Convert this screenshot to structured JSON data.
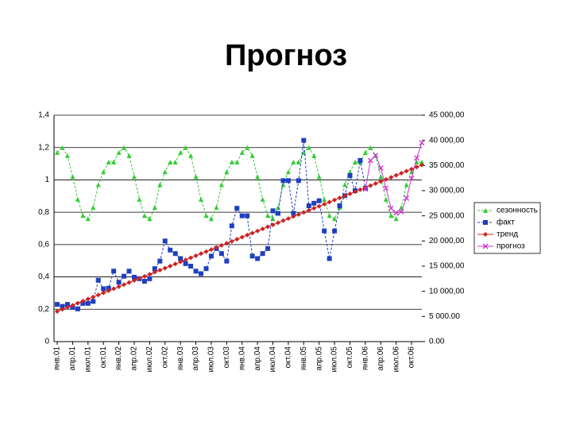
{
  "chart_data": {
    "type": "line",
    "title": "Прогноз",
    "categories": [
      "янв.01",
      null,
      null,
      "апр.01",
      null,
      null,
      "июл.01",
      null,
      null,
      "окт.01",
      null,
      null,
      "янв.02",
      null,
      null,
      "апр.02",
      null,
      null,
      "июл.02",
      null,
      null,
      "окт.02",
      null,
      null,
      "янв.03",
      null,
      null,
      "апр.03",
      null,
      null,
      "июл.03",
      null,
      null,
      "окт.03",
      null,
      null,
      "янв.04",
      null,
      null,
      "апр.04",
      null,
      null,
      "июл.04",
      null,
      null,
      "окт.04",
      null,
      null,
      "янв.05",
      null,
      null,
      "апр.05",
      null,
      null,
      "июл.05",
      null,
      null,
      "окт.05",
      null,
      null,
      "янв.06",
      null,
      null,
      "апр.06",
      null,
      null,
      "июл.06",
      null,
      null,
      "окт.06",
      null,
      null
    ],
    "ylim": [
      0,
      1.4
    ],
    "yticks": [
      0,
      {
        "value": 0.2,
        "label": "0,2"
      },
      {
        "value": 0.4,
        "label": "0,4"
      },
      {
        "value": 0.6,
        "label": "0,6"
      },
      {
        "value": 0.8,
        "label": "0,8"
      },
      1,
      {
        "value": 1.2,
        "label": "1,2"
      },
      {
        "value": 1.4,
        "label": "1,4"
      }
    ],
    "y2lim": [
      0,
      45000
    ],
    "y2ticks": [
      {
        "value": 0,
        "label": "0.00"
      },
      {
        "value": 5000,
        "label": "5 000.00"
      },
      {
        "value": 10000,
        "label": "10 000,00"
      },
      {
        "value": 15000,
        "label": "15 000,00"
      },
      {
        "value": 20000,
        "label": "20 000,00"
      },
      {
        "value": 25000,
        "label": "25 000,00"
      },
      {
        "value": 30000,
        "label": "30 000,00"
      },
      {
        "value": 35000,
        "label": "35 000,00"
      },
      {
        "value": 40000,
        "label": "40 000,00"
      },
      {
        "value": 45000,
        "label": "45 000,00"
      }
    ],
    "grid": true,
    "legend": "right",
    "series": [
      {
        "name": "сезонность",
        "color": "#33cc33",
        "marker": "triangle",
        "dash": true,
        "values": [
          1.17,
          1.2,
          1.15,
          1.02,
          0.88,
          0.78,
          0.76,
          0.83,
          0.97,
          1.05,
          1.11,
          1.11,
          1.17,
          1.2,
          1.15,
          1.02,
          0.88,
          0.78,
          0.76,
          0.83,
          0.97,
          1.05,
          1.11,
          1.11,
          1.17,
          1.2,
          1.15,
          1.02,
          0.88,
          0.78,
          0.76,
          0.83,
          0.97,
          1.05,
          1.11,
          1.11,
          1.17,
          1.2,
          1.15,
          1.02,
          0.88,
          0.78,
          0.76,
          0.83,
          0.97,
          1.05,
          1.11,
          1.11,
          1.17,
          1.2,
          1.15,
          1.02,
          0.88,
          0.78,
          0.76,
          0.83,
          0.97,
          1.05,
          1.11,
          1.11,
          1.17,
          1.2,
          1.15,
          1.02,
          0.88,
          0.78,
          0.76,
          0.83,
          0.97,
          1.05,
          1.11,
          1.11
        ]
      },
      {
        "name": "факт",
        "color": "#1f3fbf",
        "marker": "square",
        "dash": true,
        "axis": "y2",
        "values": [
          7400,
          7000,
          7400,
          6800,
          6500,
          7600,
          7600,
          8000,
          12200,
          10500,
          10600,
          14000,
          11800,
          13000,
          14000,
          12800,
          12500,
          12000,
          12500,
          14500,
          16000,
          20000,
          18200,
          17500,
          16500,
          15500,
          15000,
          14000,
          13500,
          14500,
          17000,
          18500,
          17500,
          16000,
          23000,
          26500,
          25000,
          25000,
          17000,
          16500,
          17500,
          18500,
          26000,
          25500,
          32000,
          32000,
          25500,
          32000,
          40000,
          27000,
          27500,
          28000,
          22000,
          16500,
          22000,
          27000,
          29000,
          33000,
          30000,
          36000,
          30500,
          null,
          null,
          null,
          null,
          null,
          null,
          null,
          null,
          null,
          null,
          null
        ]
      },
      {
        "name": "тренд",
        "color": "#cc2222",
        "marker": "diamond",
        "dash": false,
        "axis": "y2",
        "values": [
          6000,
          6410,
          6820,
          7230,
          7640,
          8050,
          8460,
          8870,
          9280,
          9690,
          10100,
          10510,
          10920,
          11330,
          11740,
          12150,
          12560,
          12970,
          13380,
          13790,
          14200,
          14610,
          15020,
          15430,
          15840,
          16250,
          16660,
          17070,
          17480,
          17890,
          18300,
          18710,
          19120,
          19530,
          19940,
          20350,
          20760,
          21170,
          21580,
          21990,
          22400,
          22810,
          23220,
          23630,
          24040,
          24450,
          24860,
          25270,
          25680,
          26090,
          26500,
          26910,
          27320,
          27730,
          28140,
          28550,
          28960,
          29370,
          29780,
          30190,
          30600,
          31010,
          31420,
          31830,
          32240,
          32650,
          33060,
          33470,
          33880,
          34290,
          34700,
          35110
        ]
      },
      {
        "name": "прогноз",
        "color": "#cc33cc",
        "marker": "x",
        "dash": false,
        "axis": "y2",
        "values": [
          null,
          null,
          null,
          null,
          null,
          null,
          null,
          null,
          null,
          null,
          null,
          null,
          null,
          null,
          null,
          null,
          null,
          null,
          null,
          null,
          null,
          null,
          null,
          null,
          null,
          null,
          null,
          null,
          null,
          null,
          null,
          null,
          null,
          null,
          null,
          null,
          null,
          null,
          null,
          null,
          null,
          null,
          null,
          null,
          null,
          null,
          null,
          null,
          null,
          null,
          null,
          null,
          null,
          null,
          null,
          null,
          null,
          null,
          null,
          null,
          30300,
          36000,
          37000,
          34500,
          30500,
          26500,
          25600,
          25800,
          28500,
          32500,
          36500,
          39500
        ]
      }
    ]
  }
}
